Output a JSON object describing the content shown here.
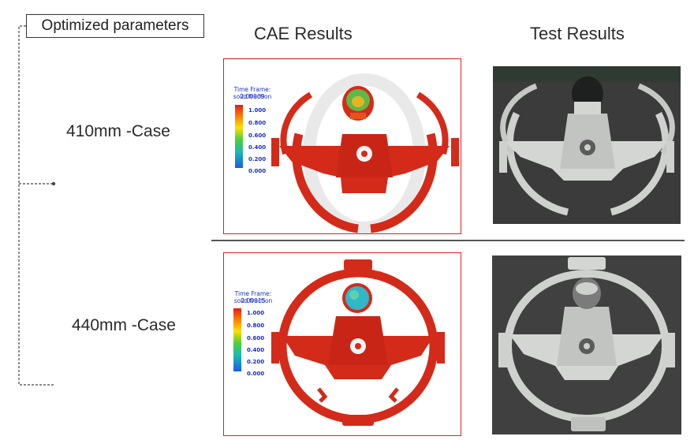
{
  "param_box": {
    "label": "Optimized parameters"
  },
  "columns": {
    "cae": "CAE Results",
    "test": "Test Results"
  },
  "cases": [
    {
      "label": "410mm -Case",
      "time_frame": "Time Frame:  2.00009",
      "quantity": "solid fraction"
    },
    {
      "label": "440mm -Case",
      "time_frame": "Time Frame:  2.00015",
      "quantity": "solid fraction"
    }
  ],
  "legend": {
    "values": [
      "1.000",
      "0.800",
      "0.600",
      "0.400",
      "0.200",
      "0.000"
    ]
  },
  "colors": {
    "casting": "#d42a1a",
    "frame_border": "#e02020",
    "legend_text": "#1a2fc8",
    "photo_bg": "#3a3b3a",
    "metal": "#cfd1cf"
  }
}
